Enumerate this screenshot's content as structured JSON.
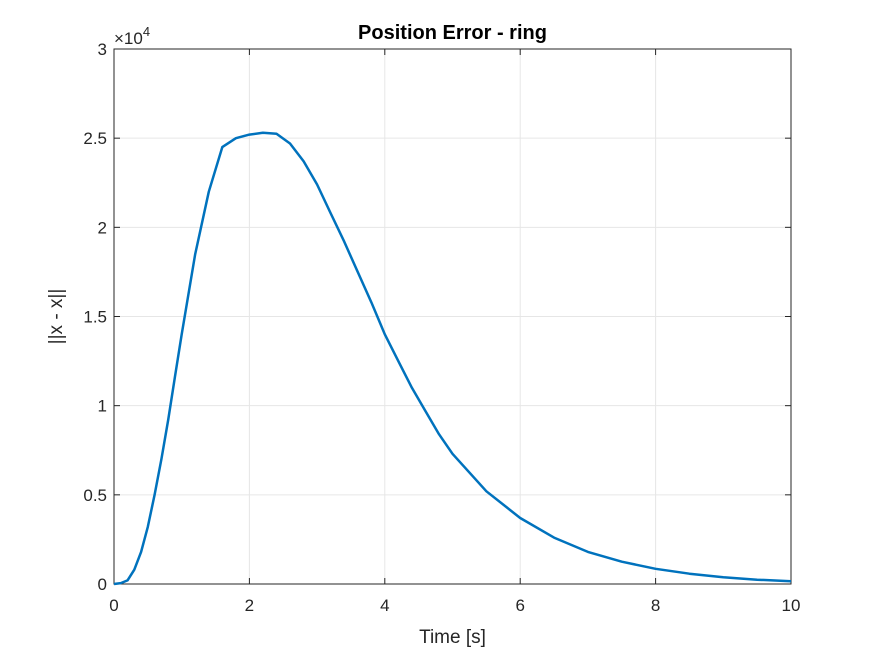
{
  "chart_data": {
    "type": "line",
    "title": "Position Error - ring",
    "xlabel": "Time [s]",
    "ylabel": "||x - x||",
    "xlim": [
      0,
      10
    ],
    "ylim": [
      0,
      30000
    ],
    "xticks": [
      0,
      2,
      4,
      6,
      8,
      10
    ],
    "xtick_labels": [
      "0",
      "2",
      "4",
      "6",
      "8",
      "10"
    ],
    "yticks": [
      0,
      5000,
      10000,
      15000,
      20000,
      25000,
      30000
    ],
    "ytick_labels": [
      "0",
      "0.5",
      "1",
      "1.5",
      "2",
      "2.5",
      "3"
    ],
    "y_exponent_label": "×10",
    "y_exponent_power": "4",
    "grid": true,
    "colors": {
      "line": "#0072BD",
      "axes": "#262626",
      "grid": "#e6e6e6"
    },
    "series": [
      {
        "x": [
          0,
          0.1,
          0.2,
          0.3,
          0.4,
          0.5,
          0.6,
          0.7,
          0.8,
          0.9,
          1.0,
          1.2,
          1.4,
          1.6,
          1.8,
          2.0,
          2.2,
          2.4,
          2.6,
          2.8,
          3.0,
          3.2,
          3.4,
          3.6,
          3.8,
          4.0,
          4.2,
          4.4,
          4.6,
          4.8,
          5.0,
          5.5,
          6.0,
          6.5,
          7.0,
          7.5,
          8.0,
          8.5,
          9.0,
          9.5,
          10.0
        ],
        "values": [
          0,
          50,
          200,
          800,
          1800,
          3200,
          5000,
          7000,
          9200,
          11600,
          14000,
          18500,
          22000,
          24500,
          25000,
          25200,
          25300,
          25250,
          24700,
          23700,
          22400,
          20800,
          19200,
          17500,
          15800,
          14000,
          12500,
          11000,
          9700,
          8400,
          7300,
          5200,
          3700,
          2600,
          1800,
          1250,
          850,
          580,
          380,
          240,
          150
        ]
      }
    ]
  }
}
